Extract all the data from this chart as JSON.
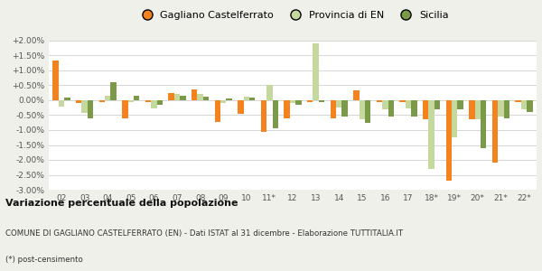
{
  "categories": [
    "02",
    "03",
    "04",
    "05",
    "06",
    "07",
    "08",
    "09",
    "10",
    "11*",
    "12",
    "13",
    "14",
    "15",
    "16",
    "17",
    "18*",
    "19*",
    "20*",
    "21*",
    "22*"
  ],
  "gagliano": [
    1.32,
    -0.1,
    -0.05,
    -0.62,
    -0.05,
    0.25,
    0.35,
    -0.72,
    -0.45,
    -1.05,
    -0.62,
    -0.05,
    -0.6,
    0.32,
    -0.05,
    -0.05,
    -0.65,
    -2.7,
    -0.65,
    -2.1,
    -0.05
  ],
  "provincia": [
    -0.2,
    -0.42,
    0.15,
    -0.05,
    -0.28,
    0.2,
    0.2,
    -0.1,
    0.12,
    0.5,
    -0.1,
    1.92,
    -0.25,
    -0.65,
    -0.3,
    -0.28,
    -2.3,
    -1.25,
    -0.65,
    -0.55,
    -0.3
  ],
  "sicilia": [
    0.1,
    -0.62,
    0.6,
    0.15,
    -0.15,
    0.15,
    0.12,
    0.07,
    0.1,
    -0.95,
    -0.15,
    -0.05,
    -0.55,
    -0.75,
    -0.55,
    -0.55,
    -0.3,
    -0.3,
    -1.6,
    -0.6,
    -0.4
  ],
  "color_gagliano": "#f4821e",
  "color_provincia": "#c5d89d",
  "color_sicilia": "#7a9a4a",
  "title": "Variazione percentuale della popolazione",
  "subtitle": "COMUNE DI GAGLIANO CASTELFERRATO (EN) - Dati ISTAT al 31 dicembre - Elaborazione TUTTITALIA.IT",
  "footnote": "(*) post-censimento",
  "ylim": [
    -3.0,
    2.0
  ],
  "yticks": [
    -3.0,
    -2.5,
    -2.0,
    -1.5,
    -1.0,
    -0.5,
    0.0,
    0.5,
    1.0,
    1.5,
    2.0
  ],
  "bg_color": "#f0f0eb",
  "plot_bg": "#ffffff",
  "legend_labels": [
    "Gagliano Castelferrato",
    "Provincia di EN",
    "Sicilia"
  ]
}
